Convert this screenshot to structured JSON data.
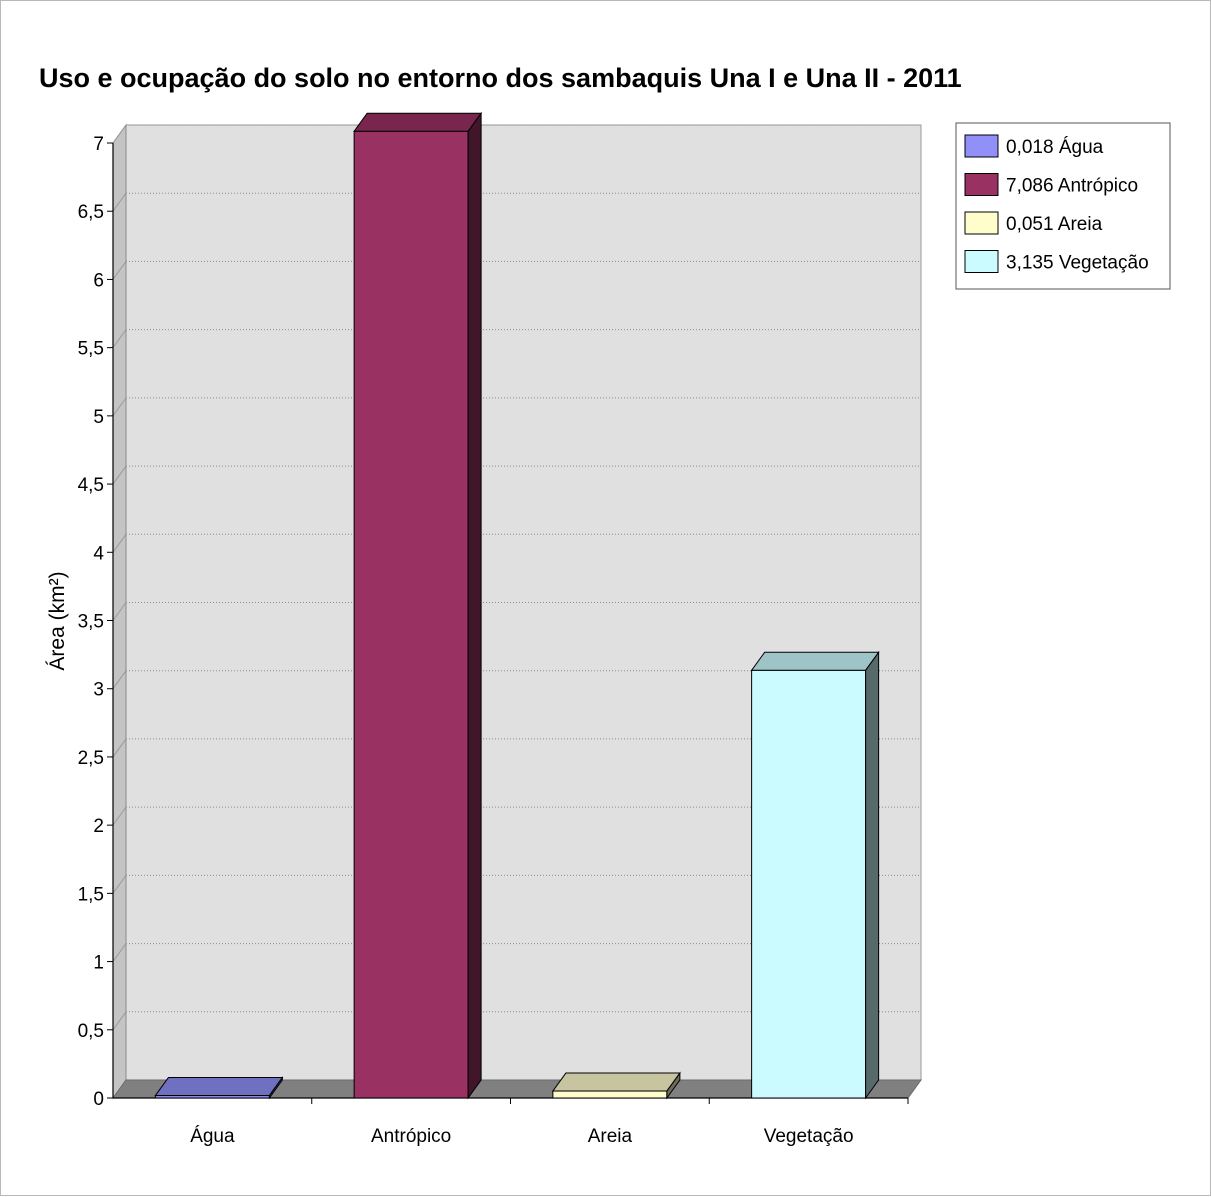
{
  "chart_data": {
    "type": "bar",
    "title": "Uso e ocupação do solo no entorno dos sambaquis Una I e Una II - 2011",
    "xlabel": "",
    "ylabel": "Área (km²)",
    "ylim": [
      0,
      7
    ],
    "yticks": [
      "0",
      "0,5",
      "1",
      "1,5",
      "2",
      "2,5",
      "3",
      "3,5",
      "4",
      "4,5",
      "5",
      "5,5",
      "6",
      "6,5",
      "7"
    ],
    "categories": [
      "Água",
      "Antrópico",
      "Areia",
      "Vegetação"
    ],
    "values": [
      0.018,
      7.086,
      0.051,
      3.135
    ],
    "colors": [
      "#9090f8",
      "#9a3163",
      "#fffdcc",
      "#ccfbff"
    ],
    "legend": {
      "position": "top-right",
      "entries": [
        "0,018 Água",
        "7,086 Antrópico",
        "0,051 Areia",
        "3,135 Vegetação"
      ]
    },
    "grid": true,
    "style": "3d"
  }
}
